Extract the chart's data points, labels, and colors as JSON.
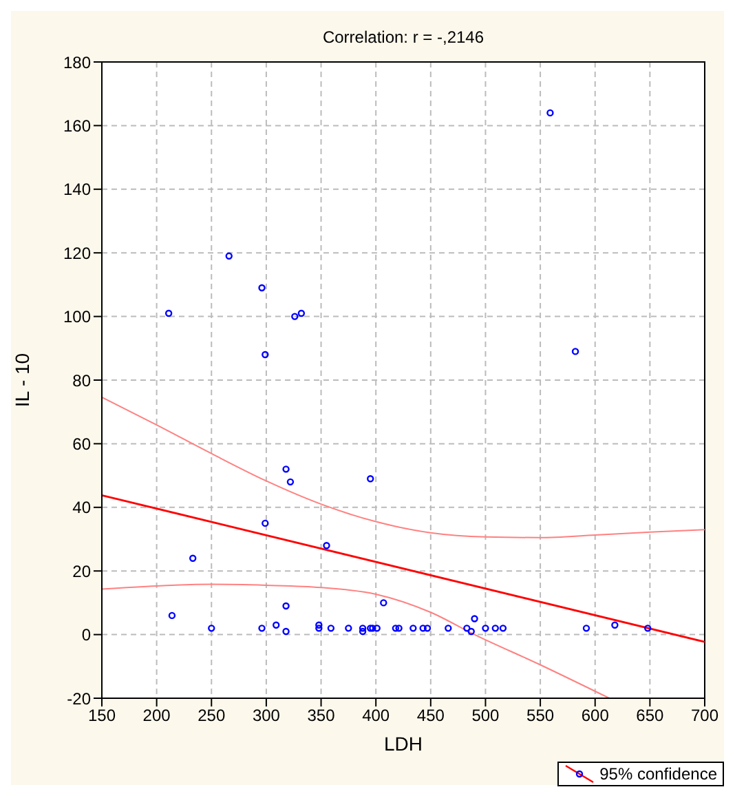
{
  "chart_data": {
    "type": "scatter",
    "title": "Correlation: r = -,2146",
    "xlabel": "LDH",
    "ylabel": "IL - 10",
    "xlim": [
      150,
      700
    ],
    "xticks": [
      150,
      200,
      250,
      300,
      350,
      400,
      450,
      500,
      550,
      600,
      650,
      700
    ],
    "ylim": [
      -20,
      180
    ],
    "yticks": [
      -20,
      0,
      20,
      40,
      60,
      80,
      100,
      120,
      140,
      160,
      180
    ],
    "grid": true,
    "legend": "bottom right",
    "marker": "circle",
    "series": [
      {
        "color": "#0000ff",
        "x": [
          211,
          214,
          233,
          250,
          266,
          296,
          296,
          299,
          299,
          309,
          318,
          318,
          318,
          322,
          326,
          332,
          348,
          348,
          355,
          359,
          375,
          388,
          388,
          395,
          395,
          397,
          401,
          407,
          418,
          421,
          434,
          443,
          447,
          466,
          483,
          487,
          490,
          500,
          509,
          516,
          559,
          582,
          592,
          618,
          648
        ],
        "values": [
          101,
          6,
          24,
          2,
          119,
          109,
          2,
          88,
          35,
          3,
          9,
          1,
          52,
          48,
          100,
          101,
          3,
          2,
          28,
          2,
          2,
          2,
          1,
          49,
          2,
          2,
          2,
          10,
          2,
          2,
          2,
          2,
          2,
          2,
          2,
          1,
          5,
          2,
          2,
          2,
          164,
          89,
          2,
          3,
          2
        ]
      },
      {
        "type": "line",
        "name": "95% confidence",
        "marker": "none",
        "color": "#ff0000",
        "x": [
          150,
          700
        ],
        "values": [
          43.8,
          -2.3
        ]
      },
      {
        "type": "line",
        "marker": "none",
        "color": "#ff8080",
        "x": [
          150,
          200,
          250,
          300,
          350,
          400,
          450,
          500,
          550,
          600,
          650,
          700
        ],
        "values": [
          74.6,
          65.9,
          56.9,
          48.3,
          41,
          35.5,
          32,
          30.7,
          30.5,
          31.3,
          32.2,
          33
        ]
      },
      {
        "type": "line",
        "marker": "none",
        "color": "#ff8080",
        "x": [
          150,
          200,
          250,
          300,
          350,
          400,
          450,
          490,
          550,
          613
        ],
        "values": [
          14.3,
          15.3,
          15.8,
          15.5,
          14.8,
          12.7,
          7,
          0,
          -9.5,
          -20
        ]
      }
    ]
  }
}
